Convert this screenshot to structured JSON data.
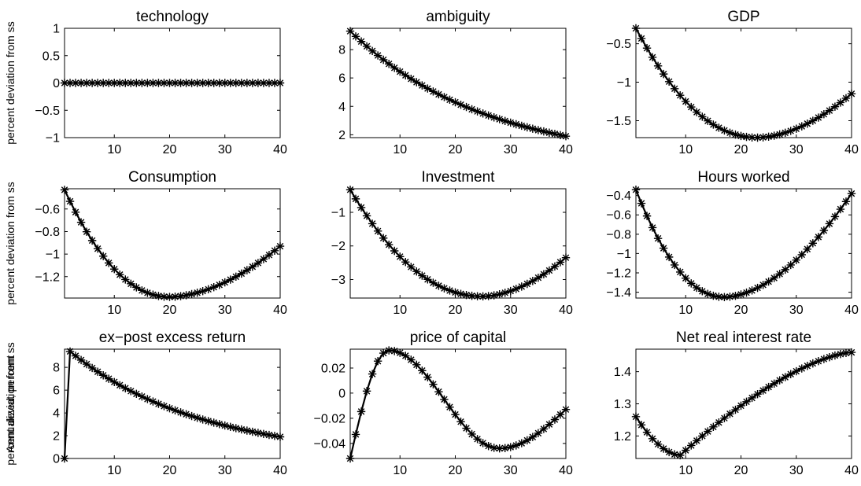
{
  "chart_data": [
    {
      "type": "line",
      "title": "technology",
      "ylabel": "percent deviation from ss",
      "xlim": [
        1,
        40
      ],
      "ylim": [
        -1,
        1
      ],
      "xticks": [
        10,
        20,
        30,
        40
      ],
      "yticks": [
        -1,
        -0.5,
        0,
        0.5,
        1
      ],
      "ytick_labels": [
        "−1",
        "−0.5",
        "0",
        "0.5",
        "1"
      ],
      "series": [
        {
          "kind": "const",
          "start": 0,
          "end": 0
        }
      ]
    },
    {
      "type": "line",
      "title": "ambiguity",
      "ylabel": "",
      "xlim": [
        1,
        40
      ],
      "ylim": [
        1.8,
        9.5
      ],
      "xticks": [
        10,
        20,
        30,
        40
      ],
      "yticks": [
        2,
        4,
        6,
        8
      ],
      "ytick_labels": [
        "2",
        "4",
        "6",
        "8"
      ],
      "series": [
        {
          "kind": "exp",
          "start": 9.3,
          "end": 1.9
        }
      ]
    },
    {
      "type": "line",
      "title": "GDP",
      "ylabel": "",
      "xlim": [
        1,
        40
      ],
      "ylim": [
        -1.72,
        -0.3
      ],
      "xticks": [
        10,
        20,
        30,
        40
      ],
      "yticks": [
        -1.5,
        -1,
        -0.5
      ],
      "ytick_labels": [
        "−1.5",
        "−1",
        "−0.5"
      ],
      "series": [
        {
          "kind": "u",
          "start": -0.3,
          "min": -1.72,
          "tmin": 23,
          "end": -1.15
        }
      ]
    },
    {
      "type": "line",
      "title": "Consumption",
      "ylabel": "percent deviation from ss",
      "xlim": [
        1,
        40
      ],
      "ylim": [
        -1.39,
        -0.42
      ],
      "xticks": [
        10,
        20,
        30,
        40
      ],
      "yticks": [
        -1.2,
        -1,
        -0.8,
        -0.6
      ],
      "ytick_labels": [
        "−1.2",
        "−1",
        "−0.8",
        "−0.6"
      ],
      "series": [
        {
          "kind": "u",
          "start": -0.43,
          "min": -1.38,
          "tmin": 20,
          "end": -0.93
        }
      ]
    },
    {
      "type": "line",
      "title": "Investment",
      "ylabel": "",
      "xlim": [
        1,
        40
      ],
      "ylim": [
        -3.55,
        -0.3
      ],
      "xticks": [
        10,
        20,
        30,
        40
      ],
      "yticks": [
        -3,
        -2,
        -1
      ],
      "ytick_labels": [
        "−3",
        "−2",
        "−1"
      ],
      "series": [
        {
          "kind": "u",
          "start": -0.33,
          "min": -3.5,
          "tmin": 25,
          "end": -2.35
        }
      ]
    },
    {
      "type": "line",
      "title": "Hours worked",
      "ylabel": "",
      "xlim": [
        1,
        40
      ],
      "ylim": [
        -1.46,
        -0.33
      ],
      "xticks": [
        10,
        20,
        30,
        40
      ],
      "yticks": [
        -1.4,
        -1.2,
        -1,
        -0.8,
        -0.6,
        -0.4
      ],
      "ytick_labels": [
        "−1.4",
        "−1.2",
        "−1",
        "−0.8",
        "−0.6",
        "−0.4"
      ],
      "series": [
        {
          "kind": "u",
          "start": -0.34,
          "min": -1.45,
          "tmin": 17,
          "end": -0.38
        }
      ]
    },
    {
      "type": "line",
      "title": "ex−post excess return",
      "ylabel": "percent deviation from ss",
      "xlim": [
        1,
        40
      ],
      "ylim": [
        0,
        9.6
      ],
      "xticks": [
        10,
        20,
        30,
        40
      ],
      "yticks": [
        0,
        2,
        4,
        6,
        8
      ],
      "ytick_labels": [
        "0",
        "2",
        "4",
        "6",
        "8"
      ],
      "series": [
        {
          "kind": "jumpexp",
          "start": 0,
          "peak": 9.4,
          "end": 1.9
        }
      ]
    },
    {
      "type": "line",
      "title": "price of capital",
      "ylabel": "",
      "xlim": [
        1,
        40
      ],
      "ylim": [
        -0.052,
        0.035
      ],
      "xticks": [
        10,
        20,
        30,
        40
      ],
      "yticks": [
        -0.04,
        -0.02,
        0,
        0.02
      ],
      "ytick_labels": [
        "−0.04",
        "−0.02",
        "0",
        "0.02"
      ],
      "series": [
        {
          "kind": "hump",
          "start": -0.052,
          "peak": 0.034,
          "tpeak": 8,
          "trough": -0.044,
          "ttrough": 28,
          "end": -0.013
        }
      ]
    },
    {
      "type": "line",
      "title": "Net real interest rate",
      "ylabel": "Annualized, percent",
      "xlim": [
        1,
        40
      ],
      "ylim": [
        1.13,
        1.47
      ],
      "xticks": [
        10,
        20,
        30,
        40
      ],
      "yticks": [
        1.2,
        1.3,
        1.4
      ],
      "ytick_labels": [
        "1.2",
        "1.3",
        "1.4"
      ],
      "series": [
        {
          "kind": "dip",
          "start": 1.26,
          "min": 1.14,
          "tmin": 9,
          "end": 1.46
        }
      ]
    }
  ]
}
